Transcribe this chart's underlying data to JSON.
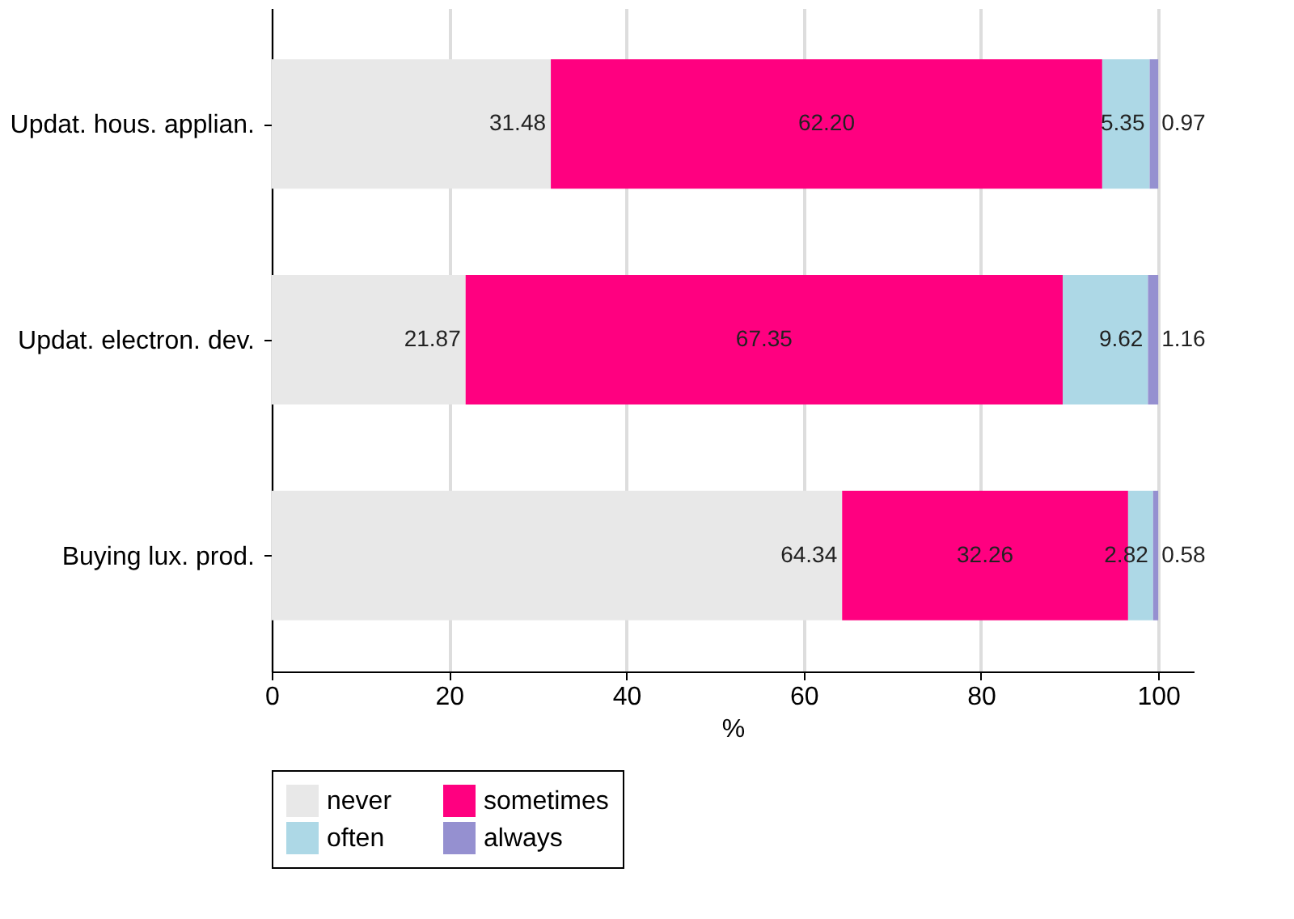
{
  "chart_data": {
    "type": "bar",
    "orientation": "horizontal",
    "stacked": true,
    "categories": [
      "Updat. hous. applian.",
      "Updat. electron. dev.",
      "Buying lux. prod."
    ],
    "series": [
      {
        "name": "never",
        "color": "#e8e8e8",
        "values": [
          31.48,
          21.87,
          64.34
        ],
        "value_labels": [
          "31.48",
          "21.87",
          "64.34"
        ]
      },
      {
        "name": "sometimes",
        "color": "#ff0080",
        "values": [
          62.2,
          67.35,
          32.26
        ],
        "value_labels": [
          "62.20",
          "67.35",
          "32.26"
        ]
      },
      {
        "name": "often",
        "color": "#add8e6",
        "values": [
          5.35,
          9.62,
          2.82
        ],
        "value_labels": [
          "5.35",
          "9.62",
          "2.82"
        ]
      },
      {
        "name": "always",
        "color": "#9590d0",
        "values": [
          0.97,
          1.16,
          0.58
        ],
        "value_labels": [
          "0.97",
          "1.16",
          "0.58"
        ]
      }
    ],
    "xlabel": "%",
    "xlim": [
      0,
      104
    ],
    "xticks": [
      0,
      20,
      40,
      60,
      80,
      100
    ],
    "grid": "x",
    "legend": "bottom"
  }
}
